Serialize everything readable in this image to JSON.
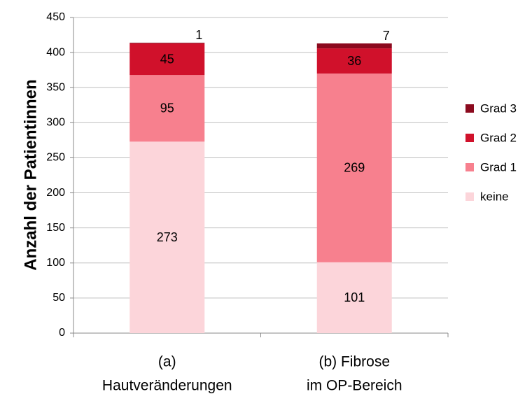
{
  "chart_data": {
    "type": "stacked_bar",
    "y_axis_label": "Anzahl der Patientinnen",
    "categories": [
      [
        "(a)",
        "Hautveränderungen"
      ],
      [
        "(b) Fibrose",
        "im OP-Bereich"
      ]
    ],
    "series": [
      {
        "name": "keine",
        "color": "#fcd5da",
        "values": [
          273,
          101
        ]
      },
      {
        "name": "Grad 1",
        "color": "#f7808e",
        "values": [
          95,
          269
        ]
      },
      {
        "name": "Grad 2",
        "color": "#d0112b",
        "values": [
          45,
          36
        ]
      },
      {
        "name": "Grad 3",
        "color": "#8b0a1e",
        "values": [
          1,
          7
        ]
      }
    ],
    "ylim": [
      0,
      450
    ],
    "yticks": [
      0,
      50,
      100,
      150,
      200,
      250,
      300,
      350,
      400,
      450
    ],
    "grid": true,
    "legend": "right"
  }
}
